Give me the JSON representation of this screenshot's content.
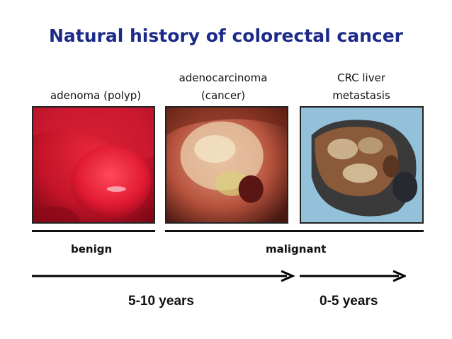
{
  "title": "Natural history of colorectal cancer",
  "stages": [
    {
      "line1": "",
      "line2": "adenoma (polyp)"
    },
    {
      "line1": "adenocarcinoma",
      "line2": "(cancer)"
    },
    {
      "line1": "CRC liver",
      "line2": "metastasis"
    }
  ],
  "categories": {
    "benign": "benign",
    "malignant": "malignant"
  },
  "durations": {
    "first": "5-10 years",
    "second": "0-5 years"
  }
}
